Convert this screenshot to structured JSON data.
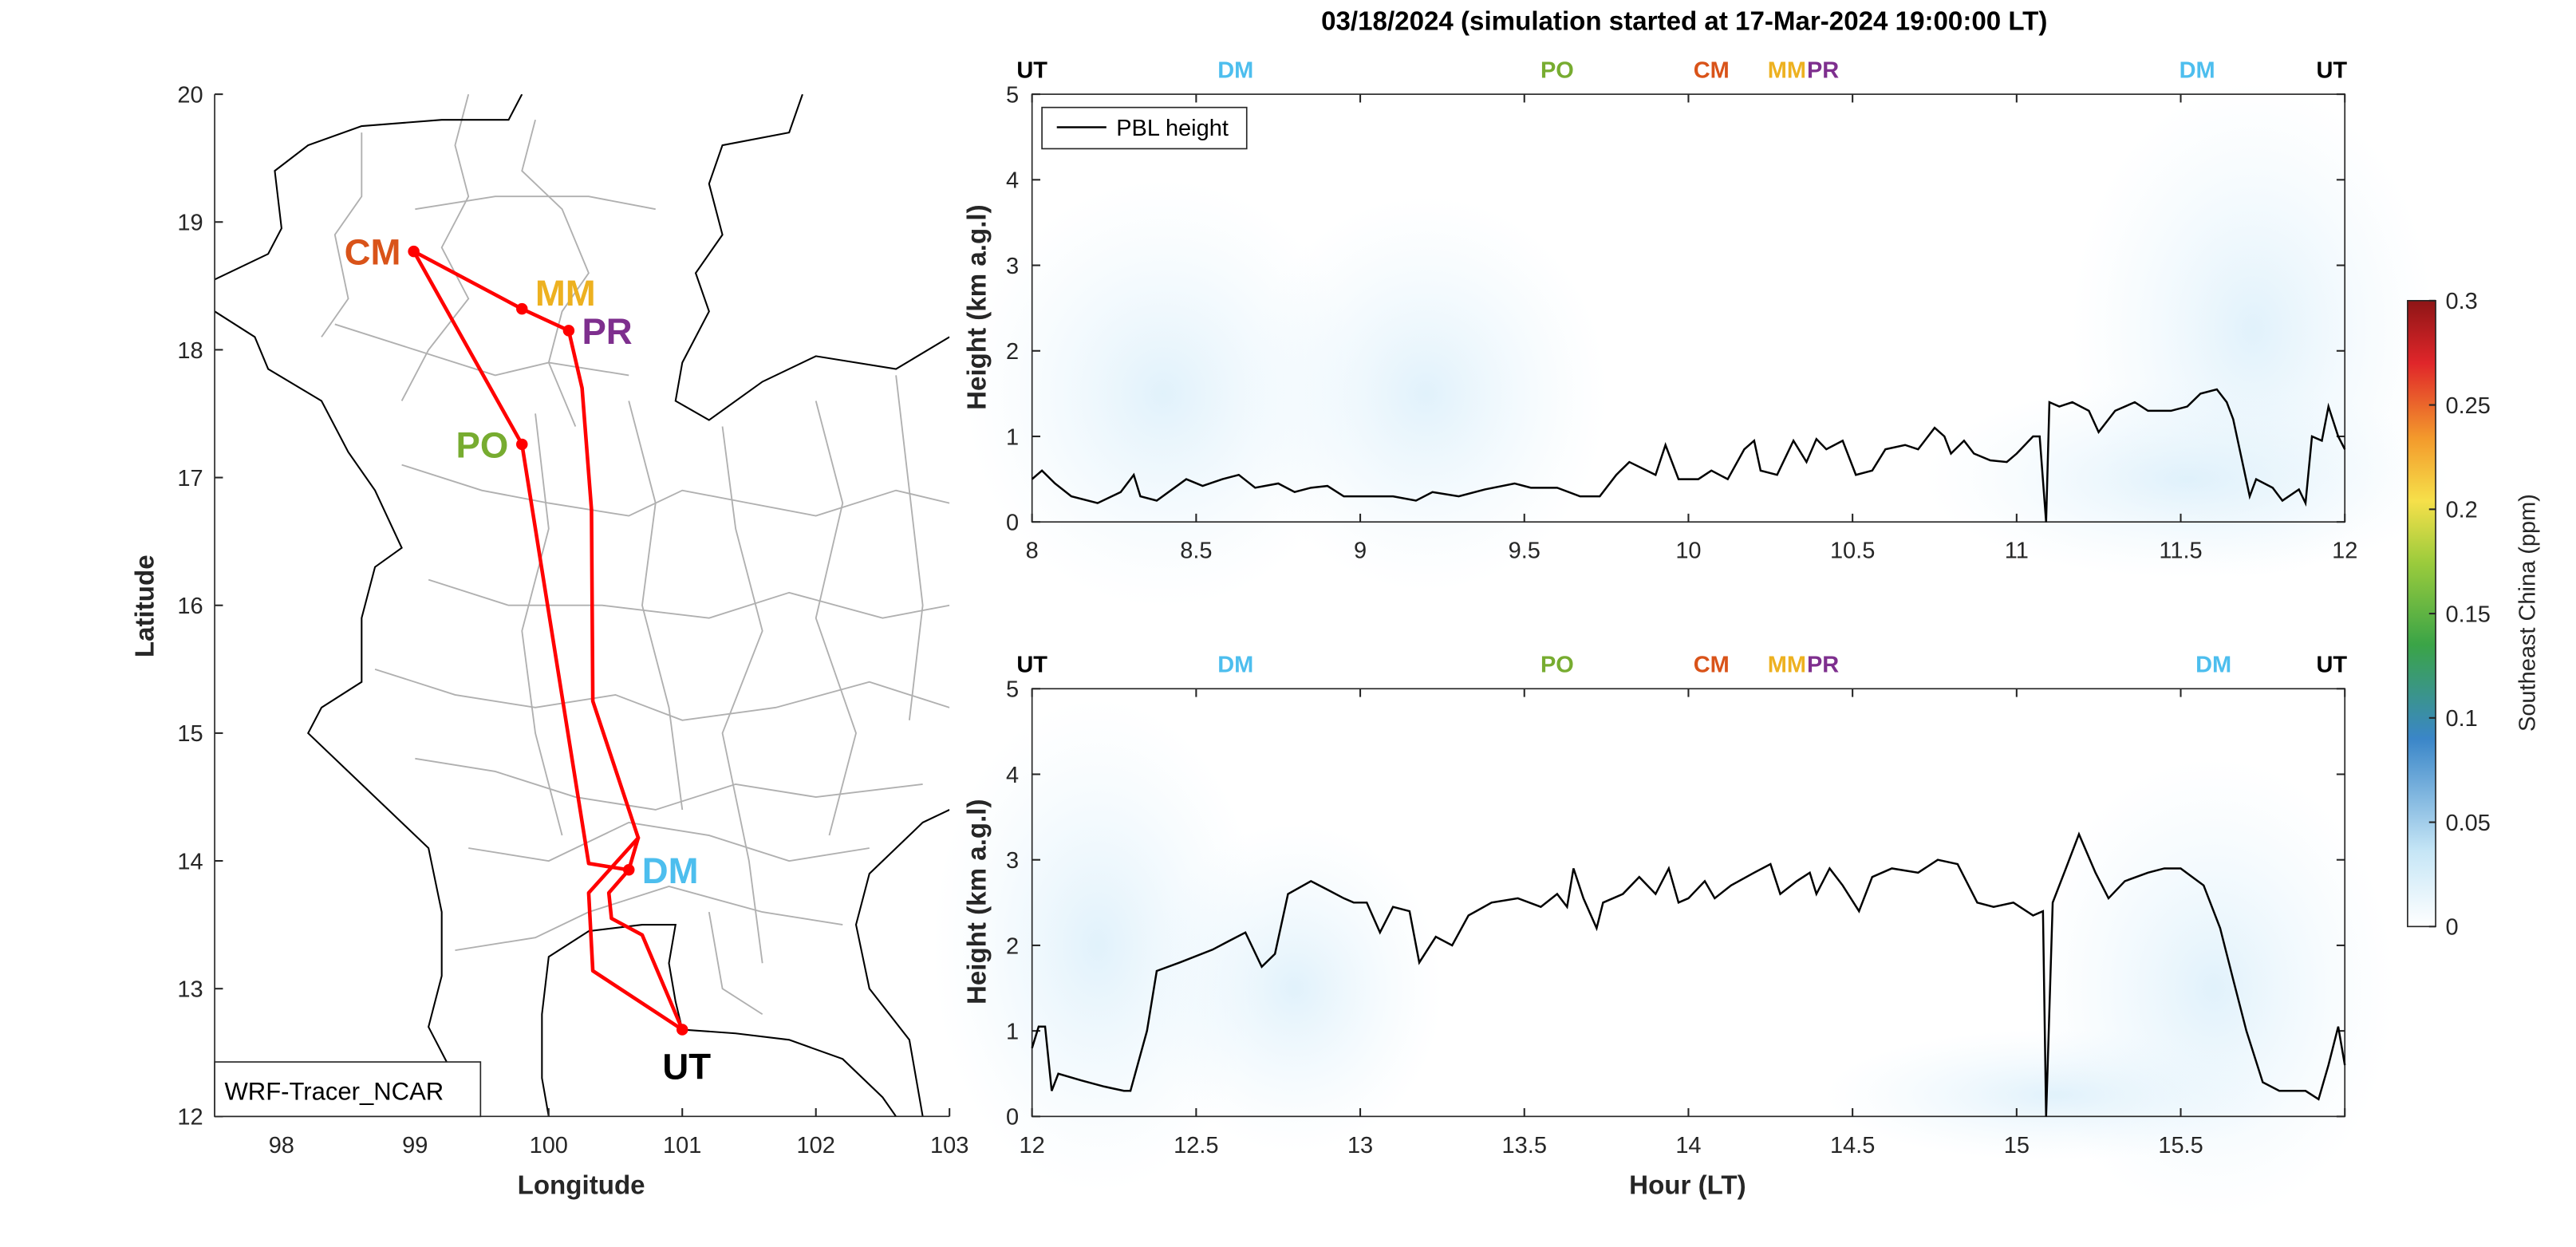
{
  "chart_data": [
    {
      "type": "map",
      "xlabel": "Longitude",
      "ylabel": "Latitude",
      "xlim": [
        97.5,
        103
      ],
      "ylim": [
        12,
        20
      ],
      "xticks": [
        98,
        99,
        100,
        101,
        102,
        103
      ],
      "yticks": [
        12,
        13,
        14,
        15,
        16,
        17,
        18,
        19,
        20
      ],
      "annotation": "WRF-Tracer_NCAR",
      "route_color": "#ff0000",
      "stations": [
        {
          "name": "CM",
          "lon": 98.99,
          "lat": 18.77,
          "color": "#d95319"
        },
        {
          "name": "MM",
          "lon": 99.8,
          "lat": 18.32,
          "color": "#edb120"
        },
        {
          "name": "PR",
          "lon": 100.15,
          "lat": 18.15,
          "color": "#7e2f8e"
        },
        {
          "name": "PO",
          "lon": 99.8,
          "lat": 17.26,
          "color": "#77ac30"
        },
        {
          "name": "DM",
          "lon": 100.6,
          "lat": 13.93,
          "color": "#4dbeee"
        },
        {
          "name": "UT",
          "lon": 101.0,
          "lat": 12.68,
          "color": "#000000"
        }
      ],
      "routes": [
        [
          [
            98.99,
            18.77
          ],
          [
            99.8,
            18.32
          ],
          [
            100.15,
            18.15
          ],
          [
            100.25,
            17.7
          ],
          [
            100.32,
            16.75
          ],
          [
            100.33,
            15.25
          ],
          [
            100.67,
            14.18
          ],
          [
            100.3,
            13.75
          ],
          [
            100.33,
            13.14
          ],
          [
            101.0,
            12.68
          ]
        ],
        [
          [
            98.99,
            18.77
          ],
          [
            99.8,
            17.26
          ],
          [
            100.3,
            13.98
          ],
          [
            100.6,
            13.93
          ],
          [
            100.67,
            14.18
          ],
          [
            100.6,
            13.93
          ],
          [
            100.45,
            13.75
          ],
          [
            100.47,
            13.55
          ],
          [
            100.7,
            13.42
          ],
          [
            101.0,
            12.68
          ]
        ]
      ]
    },
    {
      "type": "line",
      "title": "03/18/2024 (simulation started at 17-Mar-2024 19:00:00 LT)",
      "ylabel": "Height (km a.g.l)",
      "xlim": [
        8,
        12
      ],
      "ylim": [
        0,
        5
      ],
      "xticks": [
        "8",
        "8.5",
        "9",
        "9.5",
        "10",
        "10.5",
        "11",
        "11.5",
        "12"
      ],
      "yticks": [
        "0",
        "1",
        "2",
        "3",
        "4",
        "5"
      ],
      "legend": {
        "label": "PBL height",
        "placement": "top-left"
      },
      "station_marks": [
        {
          "name": "UT",
          "hour": 8.0,
          "color": "#000000"
        },
        {
          "name": "DM",
          "hour": 8.62,
          "color": "#4dbeee"
        },
        {
          "name": "PO",
          "hour": 9.6,
          "color": "#77ac30"
        },
        {
          "name": "CM",
          "hour": 10.07,
          "color": "#d95319"
        },
        {
          "name": "MM",
          "hour": 10.3,
          "color": "#edb120"
        },
        {
          "name": "PR",
          "hour": 10.41,
          "color": "#7e2f8e"
        },
        {
          "name": "DM",
          "hour": 11.55,
          "color": "#4dbeee"
        },
        {
          "name": "UT",
          "hour": 11.96,
          "color": "#000000"
        }
      ],
      "series": [
        {
          "name": "PBL height",
          "x": [
            8.0,
            8.03,
            8.07,
            8.12,
            8.2,
            8.27,
            8.31,
            8.33,
            8.38,
            8.47,
            8.52,
            8.58,
            8.63,
            8.68,
            8.75,
            8.8,
            8.85,
            8.9,
            8.95,
            9.0,
            9.1,
            9.17,
            9.22,
            9.3,
            9.38,
            9.47,
            9.52,
            9.6,
            9.67,
            9.73,
            9.78,
            9.82,
            9.9,
            9.93,
            9.97,
            10.03,
            10.07,
            10.12,
            10.17,
            10.2,
            10.22,
            10.27,
            10.32,
            10.36,
            10.39,
            10.42,
            10.47,
            10.51,
            10.56,
            10.6,
            10.66,
            10.7,
            10.75,
            10.78,
            10.8,
            10.84,
            10.87,
            10.92,
            10.97,
            11.0,
            11.05,
            11.07,
            11.09,
            11.1,
            11.13,
            11.17,
            11.22,
            11.25,
            11.3,
            11.36,
            11.4,
            11.47,
            11.52,
            11.56,
            11.61,
            11.64,
            11.66,
            11.71,
            11.73,
            11.78,
            11.81,
            11.86,
            11.88,
            11.9,
            11.93,
            11.95,
            11.98,
            12.0
          ],
          "y": [
            0.5,
            0.6,
            0.45,
            0.3,
            0.22,
            0.35,
            0.55,
            0.3,
            0.25,
            0.5,
            0.42,
            0.5,
            0.55,
            0.4,
            0.45,
            0.35,
            0.4,
            0.42,
            0.3,
            0.3,
            0.3,
            0.25,
            0.35,
            0.3,
            0.38,
            0.45,
            0.4,
            0.4,
            0.3,
            0.3,
            0.55,
            0.7,
            0.55,
            0.9,
            0.5,
            0.5,
            0.6,
            0.5,
            0.85,
            0.95,
            0.6,
            0.55,
            0.95,
            0.7,
            0.97,
            0.85,
            0.95,
            0.55,
            0.6,
            0.85,
            0.9,
            0.85,
            1.1,
            1.0,
            0.8,
            0.95,
            0.8,
            0.72,
            0.7,
            0.8,
            1.0,
            1.0,
            0.0,
            1.4,
            1.35,
            1.4,
            1.3,
            1.05,
            1.3,
            1.4,
            1.3,
            1.3,
            1.35,
            1.5,
            1.55,
            1.4,
            1.2,
            0.3,
            0.5,
            0.4,
            0.25,
            0.38,
            0.22,
            1.0,
            0.95,
            1.35,
            1.0,
            0.85
          ]
        }
      ]
    },
    {
      "type": "line",
      "xlabel": "Hour (LT)",
      "ylabel": "Height (km a.g.l)",
      "xlim": [
        12,
        16
      ],
      "ylim": [
        0,
        5
      ],
      "xticks": [
        "12",
        "12.5",
        "13",
        "13.5",
        "14",
        "14.5",
        "15",
        "15.5",
        ""
      ],
      "yticks": [
        "0",
        "1",
        "2",
        "3",
        "4",
        "5"
      ],
      "station_marks": [
        {
          "name": "UT",
          "hour": 12.0,
          "color": "#000000"
        },
        {
          "name": "DM",
          "hour": 12.62,
          "color": "#4dbeee"
        },
        {
          "name": "PO",
          "hour": 13.6,
          "color": "#77ac30"
        },
        {
          "name": "CM",
          "hour": 14.07,
          "color": "#d95319"
        },
        {
          "name": "MM",
          "hour": 14.3,
          "color": "#edb120"
        },
        {
          "name": "PR",
          "hour": 14.41,
          "color": "#7e2f8e"
        },
        {
          "name": "DM",
          "hour": 15.6,
          "color": "#4dbeee"
        },
        {
          "name": "UT",
          "hour": 15.96,
          "color": "#000000"
        }
      ],
      "series": [
        {
          "name": "PBL height",
          "x": [
            12.0,
            12.02,
            12.04,
            12.06,
            12.08,
            12.15,
            12.22,
            12.28,
            12.3,
            12.35,
            12.38,
            12.45,
            12.55,
            12.6,
            12.65,
            12.7,
            12.74,
            12.78,
            12.85,
            12.9,
            12.95,
            12.98,
            13.02,
            13.06,
            13.1,
            13.15,
            13.18,
            13.23,
            13.28,
            13.33,
            13.4,
            13.48,
            13.55,
            13.6,
            13.63,
            13.65,
            13.68,
            13.72,
            13.74,
            13.8,
            13.85,
            13.9,
            13.94,
            13.97,
            14.0,
            14.05,
            14.08,
            14.13,
            14.2,
            14.25,
            14.28,
            14.33,
            14.37,
            14.39,
            14.43,
            14.47,
            14.52,
            14.56,
            14.62,
            14.7,
            14.76,
            14.82,
            14.88,
            14.93,
            14.99,
            15.05,
            15.08,
            15.09,
            15.11,
            15.15,
            15.19,
            15.24,
            15.28,
            15.33,
            15.4,
            15.45,
            15.5,
            15.57,
            15.62,
            15.66,
            15.7,
            15.75,
            15.8,
            15.88,
            15.92,
            15.95,
            15.98,
            16.0
          ],
          "y": [
            0.8,
            1.05,
            1.05,
            0.3,
            0.5,
            0.42,
            0.35,
            0.3,
            0.3,
            1.0,
            1.7,
            1.8,
            1.95,
            2.05,
            2.15,
            1.75,
            1.9,
            2.6,
            2.75,
            2.65,
            2.55,
            2.5,
            2.5,
            2.15,
            2.45,
            2.4,
            1.8,
            2.1,
            2.0,
            2.35,
            2.5,
            2.55,
            2.45,
            2.6,
            2.45,
            2.9,
            2.55,
            2.2,
            2.5,
            2.6,
            2.8,
            2.6,
            2.9,
            2.5,
            2.55,
            2.75,
            2.55,
            2.7,
            2.85,
            2.95,
            2.6,
            2.75,
            2.85,
            2.6,
            2.9,
            2.7,
            2.4,
            2.8,
            2.9,
            2.85,
            3.0,
            2.95,
            2.5,
            2.45,
            2.5,
            2.35,
            2.4,
            0.0,
            2.5,
            2.9,
            3.3,
            2.85,
            2.55,
            2.75,
            2.85,
            2.9,
            2.9,
            2.7,
            2.2,
            1.6,
            1.0,
            0.4,
            0.3,
            0.3,
            0.2,
            0.6,
            1.05,
            0.6
          ]
        }
      ]
    },
    {
      "type": "colorbar",
      "label": "Southeast China (ppm)",
      "range": [
        0,
        0.3
      ],
      "ticks": [
        "0",
        "0.05",
        "0.1",
        "0.15",
        "0.2",
        "0.25",
        "0.3"
      ]
    }
  ]
}
